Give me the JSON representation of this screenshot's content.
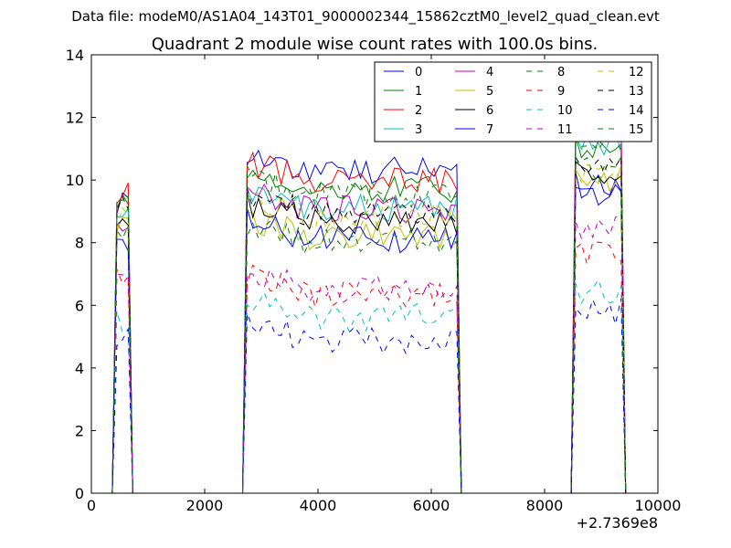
{
  "figure": {
    "suptitle": "Data file: modeM0/AS1A04_143T01_9000002344_15862cztM0_level2_quad_clean.evt"
  },
  "chart_data": {
    "type": "line",
    "title": "Quadrant 2 module wise count rates with 100.0s bins.",
    "xlabel": "",
    "ylabel": "",
    "x_offset_label": "+2.7369e8",
    "xlim": [
      0,
      10000
    ],
    "ylim": [
      0,
      14
    ],
    "xticks": [
      0,
      2000,
      4000,
      6000,
      8000,
      10000
    ],
    "yticks": [
      0,
      2,
      4,
      6,
      8,
      10,
      12,
      14
    ],
    "xtick_labels": [
      "0",
      "2000",
      "4000",
      "6000",
      "8000",
      "10000"
    ],
    "ytick_labels": [
      "0",
      "2",
      "4",
      "6",
      "8",
      "10",
      "12",
      "14"
    ],
    "legend_position": "top-right",
    "segments": [
      {
        "start": 450,
        "n": 3
      },
      {
        "start": 2750,
        "n": 38
      },
      {
        "start": 8550,
        "n": 9
      }
    ],
    "series": [
      {
        "name": "0",
        "color": "#0000ff",
        "style": "solid",
        "levels": [
          9.3,
          10.3,
          9.8
        ]
      },
      {
        "name": "1",
        "color": "#008000",
        "style": "solid",
        "levels": [
          9.4,
          9.7,
          11.0
        ]
      },
      {
        "name": "2",
        "color": "#ff0000",
        "style": "solid",
        "levels": [
          9.5,
          10.0,
          11.6
        ]
      },
      {
        "name": "3",
        "color": "#00bfbf",
        "style": "solid",
        "levels": [
          9.0,
          9.1,
          11.1
        ]
      },
      {
        "name": "4",
        "color": "#bf00bf",
        "style": "solid",
        "levels": [
          8.7,
          9.1,
          11.7
        ]
      },
      {
        "name": "5",
        "color": "#bfbf00",
        "style": "solid",
        "levels": [
          8.4,
          8.2,
          10.0
        ]
      },
      {
        "name": "6",
        "color": "#000000",
        "style": "solid",
        "levels": [
          8.5,
          8.7,
          10.3
        ]
      },
      {
        "name": "7",
        "color": "#0000ff",
        "style": "solid",
        "levels": [
          8.0,
          8.1,
          9.5
        ]
      },
      {
        "name": "8",
        "color": "#008000",
        "style": "dashed",
        "levels": [
          8.2,
          8.0,
          10.3
        ]
      },
      {
        "name": "9",
        "color": "#ff0000",
        "style": "dashed",
        "levels": [
          6.9,
          6.4,
          7.6
        ]
      },
      {
        "name": "10",
        "color": "#00bfbf",
        "style": "dashed",
        "levels": [
          5.5,
          5.6,
          6.5
        ]
      },
      {
        "name": "11",
        "color": "#bf00bf",
        "style": "dashed",
        "levels": [
          6.6,
          6.5,
          8.5
        ]
      },
      {
        "name": "12",
        "color": "#bfbf00",
        "style": "dashed",
        "levels": [
          8.9,
          8.8,
          10.2
        ]
      },
      {
        "name": "13",
        "color": "#000000",
        "style": "dashed",
        "levels": [
          9.4,
          9.0,
          10.6
        ]
      },
      {
        "name": "14",
        "color": "#0000ff",
        "style": "dashed",
        "levels": [
          5.0,
          4.9,
          5.8
        ]
      },
      {
        "name": "15",
        "color": "#008000",
        "style": "dashed",
        "levels": [
          9.6,
          9.5,
          11.1
        ]
      }
    ]
  }
}
